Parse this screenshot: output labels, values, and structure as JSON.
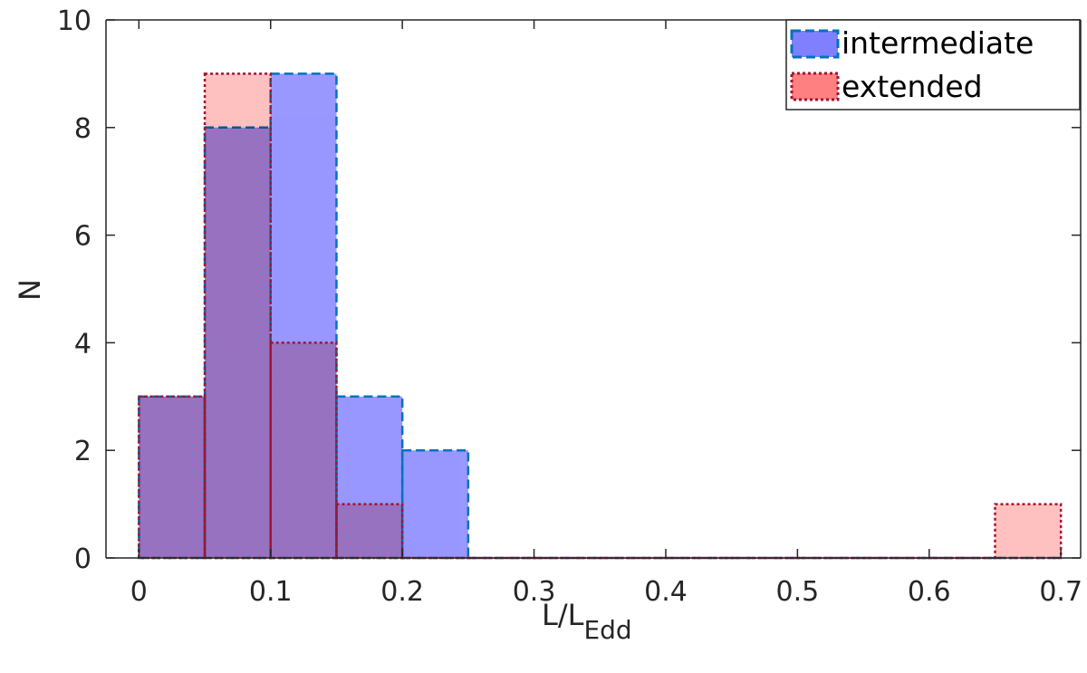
{
  "chart_data": {
    "type": "bar",
    "subtype": "overlapping-histogram",
    "xlabel": "L/L",
    "xlabel_subscript": "Edd",
    "ylabel": "N",
    "xlim": [
      -0.025,
      0.715
    ],
    "ylim": [
      0,
      10
    ],
    "xticks": [
      0,
      0.1,
      0.2,
      0.3,
      0.4,
      0.5,
      0.6,
      0.7
    ],
    "xtick_labels": [
      "0",
      "0.1",
      "0.2",
      "0.3",
      "0.4",
      "0.5",
      "0.6",
      "0.7"
    ],
    "yticks": [
      0,
      2,
      4,
      6,
      8,
      10
    ],
    "ytick_labels": [
      "0",
      "2",
      "4",
      "6",
      "8",
      "10"
    ],
    "bin_edges": [
      0,
      0.05,
      0.1,
      0.15,
      0.2,
      0.25,
      0.3,
      0.35,
      0.4,
      0.45,
      0.5,
      0.55,
      0.6,
      0.65,
      0.7
    ],
    "legend_position": "top-right",
    "grid": false,
    "series": [
      {
        "name": "intermediate",
        "values": [
          3,
          8,
          9,
          3,
          2,
          0,
          0,
          0,
          0,
          0,
          0,
          0,
          0,
          0
        ],
        "fill": "#8080ff",
        "edge": "#0072bd",
        "line_style": "dashed"
      },
      {
        "name": "extended",
        "values": [
          3,
          9,
          4,
          1,
          0,
          0,
          0,
          0,
          0,
          0,
          0,
          0,
          0,
          1
        ],
        "fill": "#ff8080",
        "edge": "#a2142f",
        "line_style": "dotted"
      }
    ]
  }
}
